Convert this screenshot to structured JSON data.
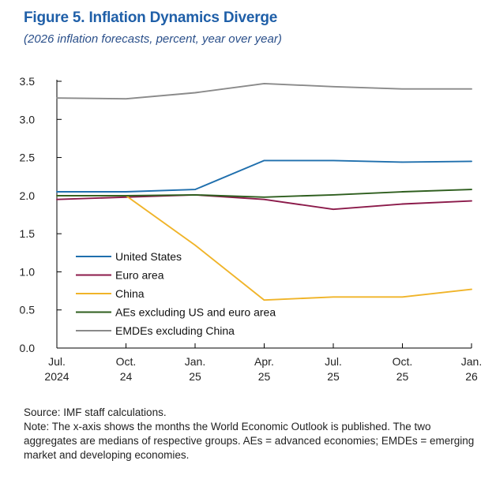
{
  "header": {
    "title": "Figure 5.  Inflation Dynamics Diverge",
    "subtitle": "(2026 inflation forecasts, percent, year over year)"
  },
  "chart_data": {
    "type": "line",
    "title": "Figure 5.  Inflation Dynamics Diverge",
    "subtitle": "(2026 inflation forecasts, percent, year over year)",
    "xlabel": "",
    "ylabel": "",
    "ylim": [
      0,
      3.5
    ],
    "yticks": [
      "0.0",
      "0.5",
      "1.0",
      "1.5",
      "2.0",
      "2.5",
      "3.0",
      "3.5"
    ],
    "categories": [
      [
        "Jul.",
        "2024"
      ],
      [
        "Oct.",
        "24"
      ],
      [
        "Jan.",
        "25"
      ],
      [
        "Apr.",
        "25"
      ],
      [
        "Jul.",
        "25"
      ],
      [
        "Oct.",
        "25"
      ],
      [
        "Jan.",
        "26"
      ]
    ],
    "grid": false,
    "legend_position": "center-left",
    "series": [
      {
        "name": "United States",
        "color": "#1f6fad",
        "values": [
          2.05,
          2.05,
          2.08,
          2.46,
          2.46,
          2.44,
          2.45
        ]
      },
      {
        "name": "Euro area",
        "color": "#8b1a4a",
        "values": [
          1.95,
          1.98,
          2.01,
          1.95,
          1.82,
          1.89,
          1.93
        ]
      },
      {
        "name": "China",
        "color": "#f0b429",
        "values": [
          2.0,
          2.0,
          1.35,
          0.63,
          0.67,
          0.67,
          0.77
        ]
      },
      {
        "name": "AEs excluding US and euro area",
        "color": "#2e5e1e",
        "values": [
          2.0,
          2.0,
          2.01,
          1.98,
          2.01,
          2.05,
          2.08
        ]
      },
      {
        "name": "EMDEs excluding China",
        "color": "#8a8a8a",
        "values": [
          3.28,
          3.27,
          3.35,
          3.47,
          3.43,
          3.4,
          3.4
        ]
      }
    ]
  },
  "notes": {
    "source": "Source: IMF staff calculations.",
    "note": "Note: The x-axis shows the months the World Economic Outlook is published. The two aggregates are medians of respective groups. AEs = advanced economies; EMDEs = emerging market and developing economies."
  }
}
